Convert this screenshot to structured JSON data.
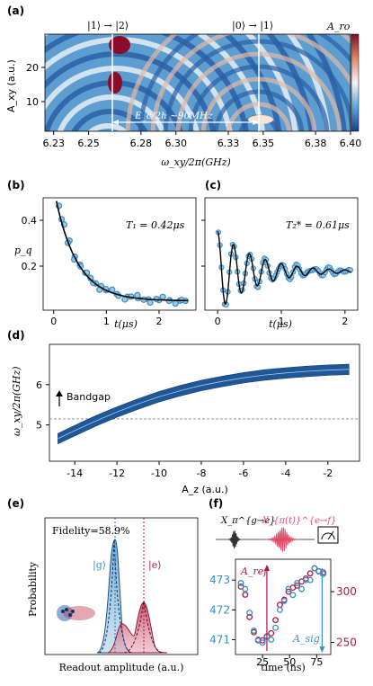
{
  "panels": {
    "a": {
      "label": "(a)",
      "xlabel": "ω_xy/2π(GHz)",
      "ylabel": "A_xy (a.u.)",
      "colorbar_label": "A_ro",
      "annot_12": "|1⟩ → |2⟩",
      "annot_01": "|0⟩ → |1⟩",
      "annot_ec": "E_c/2h ~90MHz"
    },
    "b": {
      "label": "(b)",
      "xlabel": "t(μs)",
      "ylabel": "p_q",
      "annot": "T₁ = 0.42μs"
    },
    "c": {
      "label": "(c)",
      "xlabel": "t(μs)",
      "annot": "T₂* = 0.61μs"
    },
    "d": {
      "label": "(d)",
      "xlabel": "A_z (a.u.)",
      "ylabel": "ω_xy/2π(GHz)",
      "annot": "Bandgap"
    },
    "e": {
      "label": "(e)",
      "xlabel": "Readout amplitude (a.u.)",
      "ylabel": "Probability",
      "fidelity": "Fidelity=58.9%",
      "g": "|g⟩",
      "e": "|e⟩"
    },
    "f": {
      "label": "(f)",
      "xlabel": "time (ns)",
      "pulse1": "X_π^{g→e}",
      "pulse2": "X_{π(t)}^{e→f}",
      "aref": "A_ref",
      "asig": "A_sig"
    }
  },
  "chart_data": [
    {
      "type": "heatmap",
      "title": "",
      "xlabel": "ω_xy/2π(GHz)",
      "ylabel": "A_xy (a.u.)",
      "x_ticks": [
        "6.23",
        "6.25",
        "6.28",
        "6.30",
        "6.33",
        "6.35",
        "6.38",
        "6.40"
      ],
      "y_ticks": [
        "10",
        "20"
      ],
      "xlim": [
        6.225,
        6.4
      ],
      "ylim": [
        2,
        30
      ],
      "transition_12_GHz": 6.262,
      "transition_01_GHz": 6.352
    },
    {
      "type": "scatter",
      "title": "",
      "xlabel": "t(μs)",
      "ylabel": "p_q",
      "xlim": [
        -0.2,
        2.7
      ],
      "ylim": [
        0.08,
        0.5
      ],
      "x_ticks": [
        "0",
        "1",
        "2"
      ],
      "y_ticks": [
        "0.2",
        "0.4"
      ],
      "fit": "exponential decay",
      "T1_us": 0.42,
      "series": [
        {
          "values_x": [
            0.1,
            0.2,
            0.3,
            0.4,
            0.5,
            0.6,
            0.7,
            0.8,
            0.9,
            1.0,
            1.2,
            1.4,
            1.6,
            1.8,
            2.0,
            2.2,
            2.4,
            2.5
          ],
          "values_y": [
            0.47,
            0.4,
            0.34,
            0.28,
            0.25,
            0.22,
            0.2,
            0.18,
            0.17,
            0.155,
            0.14,
            0.13,
            0.125,
            0.12,
            0.118,
            0.117,
            0.116,
            0.115
          ]
        }
      ]
    },
    {
      "type": "line",
      "title": "",
      "xlabel": "t(μs)",
      "xlim": [
        -0.2,
        2.2
      ],
      "ylim": [
        0.08,
        0.5
      ],
      "x_ticks": [
        "0",
        "1",
        "2"
      ],
      "T2star_us": 0.61,
      "fit": "damped oscillation"
    },
    {
      "type": "area",
      "title": "",
      "xlabel": "A_z (a.u.)",
      "ylabel": "ω_xy/2π(GHz)",
      "xlim": [
        -15.2,
        -0.5
      ],
      "ylim": [
        4.1,
        7.0
      ],
      "x_ticks": [
        "-14",
        "-12",
        "-10",
        "-8",
        "-6",
        "-4",
        "-2"
      ],
      "y_ticks": [
        "5",
        "6"
      ],
      "bandgap_GHz": 5.15,
      "x": [
        -14.8,
        -14,
        -13,
        -12,
        -11,
        -10,
        -9,
        -8,
        -7,
        -6,
        -5,
        -4,
        -3,
        -2,
        -1
      ],
      "values": [
        4.66,
        4.86,
        5.1,
        5.32,
        5.52,
        5.7,
        5.85,
        5.98,
        6.08,
        6.17,
        6.24,
        6.29,
        6.33,
        6.36,
        6.38
      ]
    },
    {
      "type": "histogram",
      "title": "",
      "xlabel": "Readout amplitude (a.u.)",
      "ylabel": "Probability",
      "series": [
        {
          "name": "|g⟩"
        },
        {
          "name": "|e⟩"
        }
      ]
    },
    {
      "type": "scatter",
      "title": "",
      "xlabel": "time (ns)",
      "x_ticks": [
        "25",
        "50",
        "75"
      ],
      "y_left_ticks": [
        "471",
        "472",
        "473"
      ],
      "y_right_ticks": [
        "250",
        "300"
      ],
      "series": [
        {
          "name": "A_sig",
          "color": "#3b8fc4",
          "x": [
            5,
            9,
            13,
            17,
            21,
            25,
            29,
            33,
            37,
            41,
            45,
            49,
            53,
            57,
            61,
            65,
            69,
            73,
            77,
            81
          ],
          "values": [
            472.9,
            472.7,
            471.9,
            471.3,
            471.0,
            470.9,
            471.1,
            471.0,
            471.4,
            472.0,
            472.3,
            472.7,
            472.5,
            472.9,
            472.7,
            473.0,
            473.0,
            473.4,
            473.3,
            473.2
          ]
        },
        {
          "name": "A_ref",
          "color": "#b3163f",
          "x": [
            5,
            9,
            13,
            17,
            21,
            25,
            29,
            33,
            37,
            41,
            45,
            49,
            53,
            57,
            61,
            65,
            69,
            73,
            77,
            81
          ],
          "values": [
            305,
            297,
            275,
            260,
            252,
            252,
            256,
            259,
            272,
            287,
            292,
            300,
            304,
            306,
            310,
            313,
            318,
            323,
            320,
            319
          ]
        }
      ]
    }
  ],
  "colors": {
    "blue": "#3b8fc4",
    "dark_blue": "#1f4e8c",
    "red": "#b3163f",
    "white_line": "#ffffff"
  }
}
